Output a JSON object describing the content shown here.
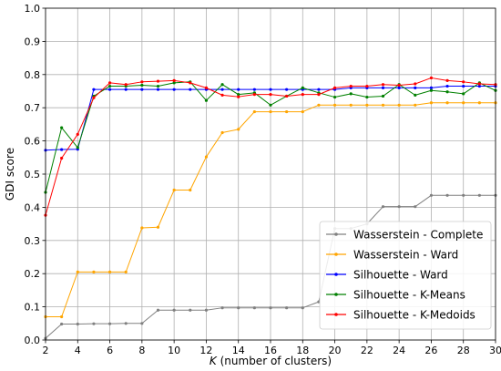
{
  "chart_data": {
    "type": "line",
    "xlabel": "K (number of clusters)",
    "xlabel_italic": "K",
    "xlabel_rest": " (number of clusters)",
    "ylabel": "GDI score",
    "xlim": [
      2,
      30
    ],
    "ylim": [
      0,
      1.0
    ],
    "xticks": [
      2,
      4,
      6,
      8,
      10,
      12,
      14,
      16,
      18,
      20,
      22,
      24,
      26,
      28,
      30
    ],
    "yticks": [
      0.0,
      0.1,
      0.2,
      0.3,
      0.4,
      0.5,
      0.6,
      0.7,
      0.8,
      0.9,
      1.0
    ],
    "ytick_labels": [
      "0.0",
      "0.1",
      "0.2",
      "0.3",
      "0.4",
      "0.5",
      "0.6",
      "0.7",
      "0.8",
      "0.9",
      "1.0"
    ],
    "grid": true,
    "legend_position": "lower-right",
    "x": [
      2,
      3,
      4,
      5,
      6,
      7,
      8,
      9,
      10,
      11,
      12,
      13,
      14,
      15,
      16,
      17,
      18,
      19,
      20,
      21,
      22,
      23,
      24,
      25,
      26,
      27,
      28,
      29,
      30
    ],
    "series": [
      {
        "name": "Wasserstein - Complete",
        "color": "#808080",
        "values": [
          0.005,
          0.048,
          0.048,
          0.049,
          0.049,
          0.05,
          0.05,
          0.09,
          0.09,
          0.09,
          0.09,
          0.097,
          0.097,
          0.097,
          0.097,
          0.097,
          0.097,
          0.115,
          0.336,
          0.336,
          0.35,
          0.402,
          0.402,
          0.402,
          0.436,
          0.436,
          0.436,
          0.436,
          0.436
        ]
      },
      {
        "name": "Wasserstein - Ward",
        "color": "#FFA500",
        "values": [
          0.07,
          0.07,
          0.205,
          0.205,
          0.205,
          0.205,
          0.338,
          0.34,
          0.452,
          0.452,
          0.552,
          0.625,
          0.635,
          0.688,
          0.688,
          0.688,
          0.688,
          0.708,
          0.708,
          0.708,
          0.708,
          0.708,
          0.708,
          0.708,
          0.715,
          0.715,
          0.715,
          0.715,
          0.715
        ]
      },
      {
        "name": "Silhouette - Ward",
        "color": "#0000FF",
        "values": [
          0.572,
          0.574,
          0.575,
          0.755,
          0.755,
          0.755,
          0.755,
          0.755,
          0.755,
          0.755,
          0.755,
          0.755,
          0.755,
          0.755,
          0.755,
          0.755,
          0.755,
          0.755,
          0.755,
          0.76,
          0.76,
          0.76,
          0.76,
          0.76,
          0.76,
          0.765,
          0.765,
          0.765,
          0.765
        ]
      },
      {
        "name": "Silhouette - K-Means",
        "color": "#008000",
        "values": [
          0.445,
          0.64,
          0.58,
          0.735,
          0.765,
          0.765,
          0.768,
          0.765,
          0.775,
          0.778,
          0.722,
          0.77,
          0.74,
          0.745,
          0.708,
          0.735,
          0.76,
          0.745,
          0.732,
          0.742,
          0.732,
          0.735,
          0.77,
          0.738,
          0.752,
          0.748,
          0.742,
          0.775,
          0.752
        ]
      },
      {
        "name": "Silhouette - K-Medoids",
        "color": "#FF0000",
        "values": [
          0.376,
          0.548,
          0.62,
          0.73,
          0.775,
          0.77,
          0.778,
          0.78,
          0.782,
          0.775,
          0.76,
          0.738,
          0.733,
          0.74,
          0.74,
          0.735,
          0.74,
          0.74,
          0.76,
          0.765,
          0.765,
          0.77,
          0.768,
          0.772,
          0.79,
          0.782,
          0.778,
          0.772,
          0.77
        ]
      }
    ]
  }
}
